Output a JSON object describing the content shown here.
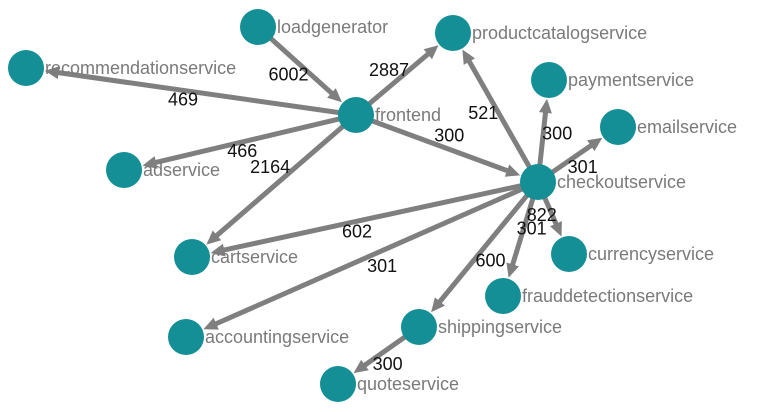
{
  "colors": {
    "node": "#138f95",
    "edge": "#7f7f7f",
    "node_label": "#7a7a7a",
    "edge_label": "#111111"
  },
  "nodes": [
    {
      "id": "loadgenerator",
      "label": "loadgenerator"
    },
    {
      "id": "productcatalogservice",
      "label": "productcatalogservice"
    },
    {
      "id": "recommendationservice",
      "label": "recommendationservice"
    },
    {
      "id": "paymentservice",
      "label": "paymentservice"
    },
    {
      "id": "frontend",
      "label": "frontend"
    },
    {
      "id": "emailservice",
      "label": "emailservice"
    },
    {
      "id": "adservice",
      "label": "adservice"
    },
    {
      "id": "checkoutservice",
      "label": "checkoutservice"
    },
    {
      "id": "cartservice",
      "label": "cartservice"
    },
    {
      "id": "currencyservice",
      "label": "currencyservice"
    },
    {
      "id": "frauddetectionservice",
      "label": "frauddetectionservice"
    },
    {
      "id": "accountingservice",
      "label": "accountingservice"
    },
    {
      "id": "shippingservice",
      "label": "shippingservice"
    },
    {
      "id": "quoteservice",
      "label": "quoteservice"
    }
  ],
  "edges": [
    {
      "source": "loadgenerator",
      "target": "frontend",
      "label": "6002"
    },
    {
      "source": "frontend",
      "target": "productcatalogservice",
      "label": "2887"
    },
    {
      "source": "frontend",
      "target": "recommendationservice",
      "label": "469"
    },
    {
      "source": "frontend",
      "target": "adservice",
      "label": "466"
    },
    {
      "source": "frontend",
      "target": "cartservice",
      "label": "2164"
    },
    {
      "source": "frontend",
      "target": "checkoutservice",
      "label": "300"
    },
    {
      "source": "checkoutservice",
      "target": "productcatalogservice",
      "label": "521"
    },
    {
      "source": "checkoutservice",
      "target": "paymentservice",
      "label": "300"
    },
    {
      "source": "checkoutservice",
      "target": "emailservice",
      "label": "301"
    },
    {
      "source": "checkoutservice",
      "target": "currencyservice",
      "label": "822"
    },
    {
      "source": "checkoutservice",
      "target": "frauddetectionservice",
      "label": "301"
    },
    {
      "source": "checkoutservice",
      "target": "cartservice",
      "label": "602"
    },
    {
      "source": "checkoutservice",
      "target": "accountingservice",
      "label": "301"
    },
    {
      "source": "checkoutservice",
      "target": "shippingservice",
      "label": "600"
    },
    {
      "source": "shippingservice",
      "target": "quoteservice",
      "label": "300"
    }
  ]
}
